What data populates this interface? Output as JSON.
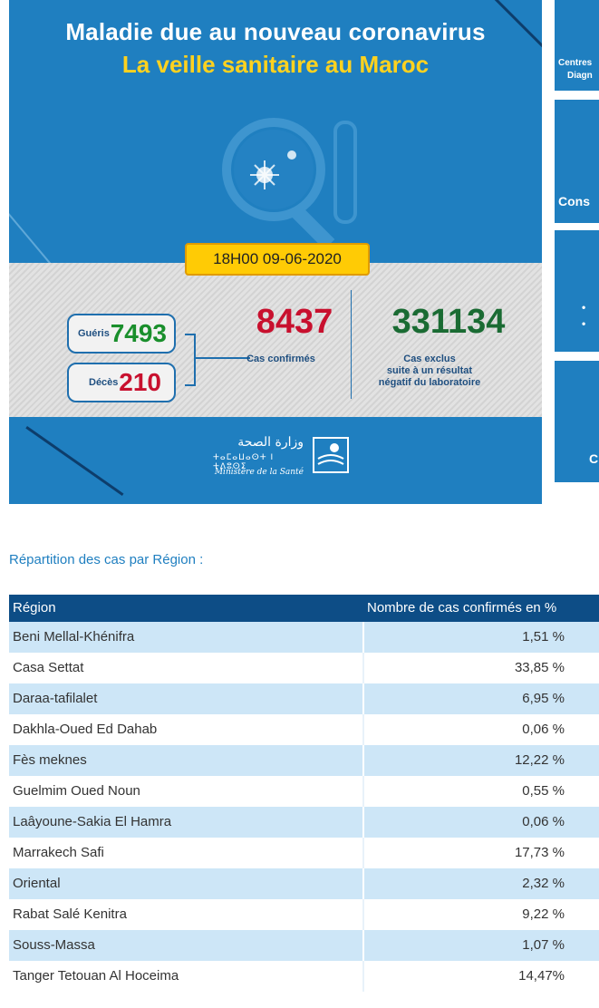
{
  "banner": {
    "title_line1": "Maladie due au nouveau coronavirus",
    "title_line2": "La veille sanitaire au Maroc",
    "datetime": "18H00  09-06-2020",
    "recovered_label": "Guéris",
    "recovered_value": "7493",
    "deaths_label": "Décès",
    "deaths_value": "210",
    "confirmed_value": "8437",
    "confirmed_label": "Cas confirmés",
    "excluded_value": "331134",
    "excluded_label_l1": "Cas exclus",
    "excluded_label_l2": "suite à un résultat",
    "excluded_label_l3": "négatif du laboratoire",
    "ministry_ar": "وزارة الصحة",
    "ministry_tif": "ⵜⴰⵎⴰⵡⴰⵙⵜ ⵏ ⵜⴷⵓⵙⵉ",
    "ministry_fr": "Ministère de la Santé"
  },
  "side_cards": {
    "card1_l1": "Centres",
    "card1_l2": "Diagn",
    "card2": "Cons",
    "card4": "C"
  },
  "heading": "Répartition des cas par Région :",
  "table": {
    "col_region": "Région",
    "col_percent": "Nombre de cas confirmés en %",
    "rows": [
      {
        "region": "Beni Mellal-Khénifra",
        "percent": "1,51 %"
      },
      {
        "region": "Casa Settat",
        "percent": "33,85 %"
      },
      {
        "region": "Daraa-tafilalet",
        "percent": "6,95 %"
      },
      {
        "region": "Dakhla-Oued Ed Dahab",
        "percent": "0,06 %"
      },
      {
        "region": "Fès meknes",
        "percent": "12,22 %"
      },
      {
        "region": "Guelmim Oued Noun",
        "percent": "0,55 %"
      },
      {
        "region": "Laâyoune-Sakia El Hamra",
        "percent": "0,06 %"
      },
      {
        "region": "Marrakech Safi",
        "percent": "17,73 %"
      },
      {
        "region": "Oriental",
        "percent": "2,32 %"
      },
      {
        "region": "Rabat Salé Kenitra",
        "percent": "9,22 %"
      },
      {
        "region": "Souss-Massa",
        "percent": "1,07 %"
      },
      {
        "region": "Tanger Tetouan Al Hoceima",
        "percent": "14,47%"
      }
    ]
  },
  "colors": {
    "banner_blue": "#1f7fc0",
    "header_navy": "#0d4d86",
    "recovered_green": "#1a8f2c",
    "deaths_red": "#c8102e",
    "date_yellow": "#ffcb05",
    "row_highlight": "#cde6f7"
  }
}
